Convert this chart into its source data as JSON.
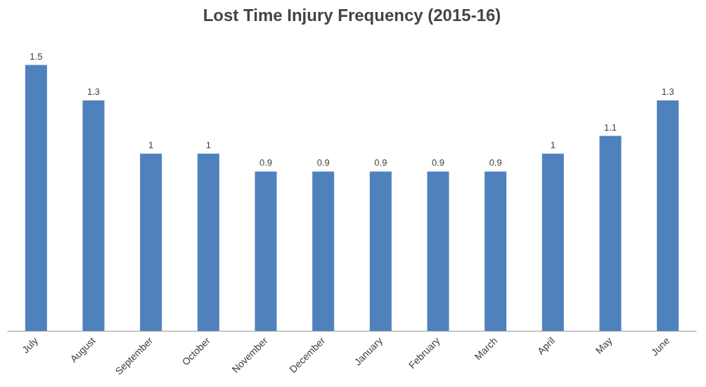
{
  "chart_data": {
    "type": "bar",
    "title": "Lost Time Injury Frequency (2015-16)",
    "categories": [
      "July",
      "August",
      "September",
      "October",
      "November",
      "December",
      "January",
      "February",
      "March",
      "April",
      "May",
      "June"
    ],
    "values": [
      1.5,
      1.3,
      1,
      1,
      0.9,
      0.9,
      0.9,
      0.9,
      0.9,
      1,
      1.1,
      1.3
    ],
    "color": "#4f81bd",
    "data_labels": true
  }
}
